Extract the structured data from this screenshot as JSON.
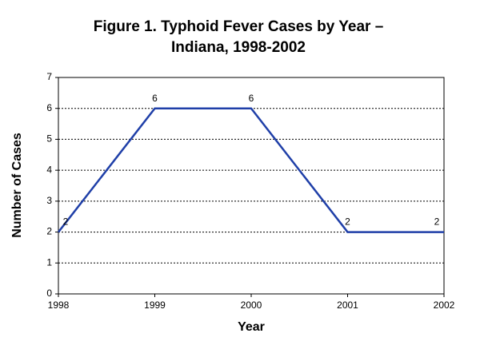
{
  "chart_data": {
    "type": "line",
    "title": [
      "Figure 1.  Typhoid Fever Cases by Year –",
      "Indiana, 1998-2002"
    ],
    "x_label": "Year",
    "y_label": "Number of Cases",
    "x": [
      1998,
      1999,
      2000,
      2001,
      2002
    ],
    "values": [
      2,
      6,
      6,
      2,
      2
    ],
    "color": "#1f3fa8",
    "xlim": [
      1998,
      2002
    ],
    "xticks": [
      1998,
      1999,
      2000,
      2001,
      2002
    ],
    "ylim": [
      0,
      7
    ],
    "yticks": [
      0,
      1,
      2,
      3,
      4,
      5,
      6,
      7
    ],
    "grid": true
  }
}
